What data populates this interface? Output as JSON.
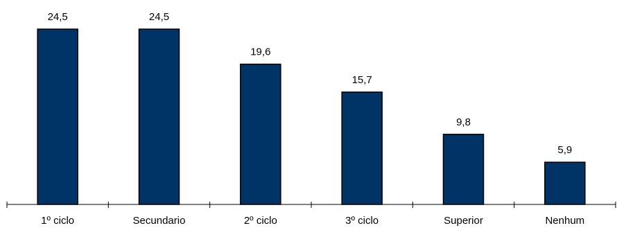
{
  "chart_data": {
    "type": "bar",
    "categories": [
      "1º ciclo",
      "Secundario",
      "2º ciclo",
      "3º ciclo",
      "Superior",
      "Nenhum"
    ],
    "values": [
      24.5,
      24.5,
      19.6,
      15.7,
      9.8,
      5.9
    ],
    "value_labels": [
      "24,5",
      "24,5",
      "19,6",
      "15,7",
      "9,8",
      "5,9"
    ],
    "ylim": [
      0,
      28
    ],
    "bar_color": "#003366",
    "grid": false,
    "legend": "none"
  }
}
